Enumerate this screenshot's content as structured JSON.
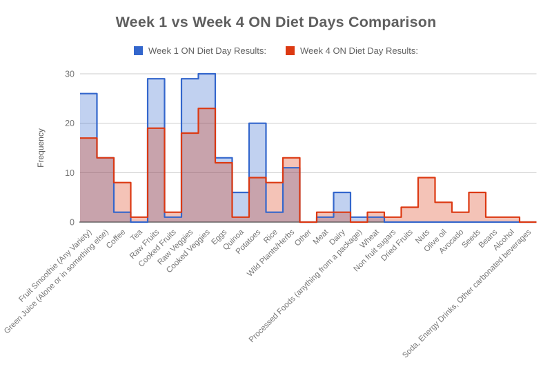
{
  "title": "Week 1 vs Week 4 ON Diet Days Comparison",
  "legend": [
    {
      "label": "Week 1 ON Diet Day Results:",
      "color": "#3366CC"
    },
    {
      "label": "Week 4 ON Diet Day Results:",
      "color": "#DC3912"
    }
  ],
  "chart_data": {
    "type": "area",
    "subtype": "stepped",
    "title": "Week 1 vs Week 4 ON Diet Days Comparison",
    "xlabel": "",
    "ylabel": "Frequency",
    "ylim": [
      0,
      30
    ],
    "yticks": [
      0,
      10,
      20,
      30
    ],
    "grid": true,
    "legend_position": "top",
    "fill_opacity": 0.3,
    "categories": [
      "Fruit Smoothie (Any Variety)",
      "Green Juice (Alone or in something else)",
      "Coffee",
      "Tea",
      "Raw Fruits",
      "Cooked Fruits",
      "Raw Veggies",
      "Cooked Veggies",
      "Eggs",
      "Quinoa",
      "Potatoes",
      "Rice",
      "Wild Plants/Herbs",
      "Other",
      "Meat",
      "Dairy",
      "Processed Foods (anything from a package)",
      "Wheat",
      "Non fruit sugars",
      "Dried Fruits",
      "Nuts",
      "Olive oil",
      "Avocado",
      "Seeds",
      "Beans",
      "Alcohol",
      "Soda, Energy Drinks, Other carbonated beverages"
    ],
    "series": [
      {
        "name": "Week 1 ON Diet Day Results:",
        "color": "#3366CC",
        "values": [
          26,
          13,
          2,
          0,
          29,
          1,
          29,
          30,
          13,
          6,
          20,
          2,
          11,
          0,
          1,
          6,
          1,
          1,
          0,
          0,
          0,
          0,
          0,
          0,
          0,
          0,
          0
        ]
      },
      {
        "name": "Week 4 ON Diet Day Results:",
        "color": "#DC3912",
        "values": [
          17,
          13,
          8,
          1,
          19,
          2,
          18,
          23,
          12,
          1,
          9,
          8,
          13,
          0,
          2,
          2,
          0,
          2,
          1,
          3,
          9,
          4,
          2,
          6,
          1,
          1,
          0
        ]
      }
    ]
  },
  "colors": {
    "gridline": "#cccccc",
    "baseline": "#4a4a4a",
    "tick_label": "#757575",
    "axis_title": "#5c5c5c",
    "title_text": "#5f5f5f"
  }
}
